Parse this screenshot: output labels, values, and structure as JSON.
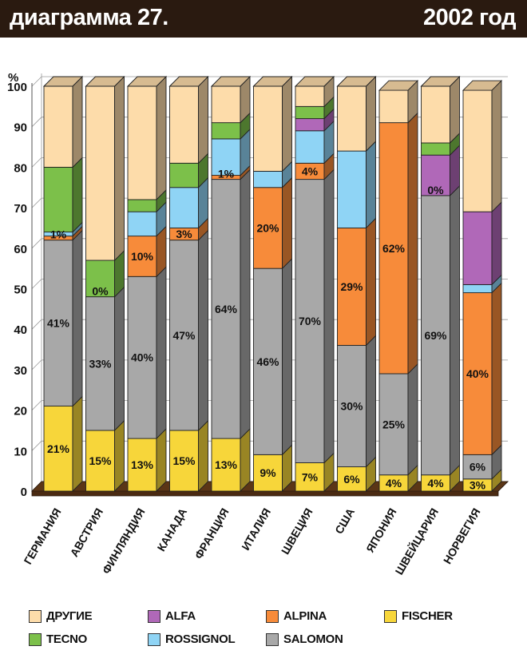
{
  "header": {
    "title": "диаграмма 27.",
    "year": "2002 год"
  },
  "chart_data": {
    "type": "bar",
    "stacked": true,
    "ylabel": "%",
    "ylim": [
      0,
      100
    ],
    "yticks": [
      0,
      10,
      20,
      30,
      40,
      50,
      60,
      70,
      80,
      90,
      100
    ],
    "grid": true,
    "legend_position": "bottom",
    "categories": [
      "ГЕРМАНИЯ",
      "АВСТРИЯ",
      "ФИНЛЯНДИЯ",
      "КАНАДА",
      "ФРАНЦИЯ",
      "ИТАЛИЯ",
      "ШВЕЦИЯ",
      "США",
      "ЯПОНИЯ",
      "ШВЕЙЦАРИЯ",
      "НОРВЕГИЯ"
    ],
    "series": [
      {
        "name": "FISCHER",
        "color": "#f7d63a",
        "values": [
          21,
          15,
          13,
          15,
          13,
          9,
          7,
          6,
          4,
          4,
          3
        ],
        "labels": [
          "21%",
          "15%",
          "13%",
          "15%",
          "13%",
          "9%",
          "7%",
          "6%",
          "4%",
          "4%",
          "3%"
        ]
      },
      {
        "name": "SALOMON",
        "color": "#a8a8a8",
        "values": [
          41,
          33,
          40,
          47,
          64,
          46,
          70,
          30,
          25,
          69,
          6
        ],
        "labels": [
          "41%",
          "33%",
          "40%",
          "47%",
          "64%",
          "46%",
          "70%",
          "30%",
          "25%",
          "69%",
          "6%"
        ]
      },
      {
        "name": "ALPINA",
        "color": "#f78b3a",
        "values": [
          1,
          0,
          10,
          3,
          1,
          20,
          4,
          29,
          62,
          0,
          40
        ],
        "labels": [
          "1%",
          "0%",
          "10%",
          "3%",
          "1%",
          "20%",
          "4%",
          "29%",
          "62%",
          "0%",
          "40%"
        ]
      },
      {
        "name": "ROSSIGNOL",
        "color": "#8fd4f5",
        "values": [
          1,
          0,
          6,
          10,
          9,
          4,
          8,
          19,
          0,
          0,
          2
        ],
        "labels": [
          "",
          "",
          "",
          "",
          "",
          "",
          "",
          "",
          "",
          "",
          ""
        ]
      },
      {
        "name": "ALFA",
        "color": "#b068b8",
        "values": [
          0,
          0,
          0,
          0,
          0,
          0,
          3,
          0,
          0,
          10,
          18
        ],
        "labels": [
          "",
          "",
          "",
          "",
          "",
          "",
          "",
          "",
          "",
          "",
          ""
        ]
      },
      {
        "name": "TECNO",
        "color": "#7cc04a",
        "values": [
          16,
          9,
          3,
          6,
          4,
          0,
          3,
          0,
          0,
          3,
          0
        ],
        "labels": [
          "",
          "",
          "",
          "",
          "",
          "",
          "",
          "",
          "",
          "",
          ""
        ]
      },
      {
        "name": "ДРУГИЕ",
        "color": "#fddcaa",
        "values": [
          20,
          43,
          28,
          19,
          9,
          21,
          5,
          16,
          8,
          14,
          30
        ],
        "labels": [
          "",
          "",
          "",
          "",
          "",
          "",
          "",
          "",
          "",
          "",
          ""
        ]
      }
    ],
    "legend": [
      "ДРУГИЕ",
      "ALFA",
      "ALPINA",
      "FISCHER",
      "TECNO",
      "ROSSIGNOL",
      "SALOMON"
    ]
  }
}
